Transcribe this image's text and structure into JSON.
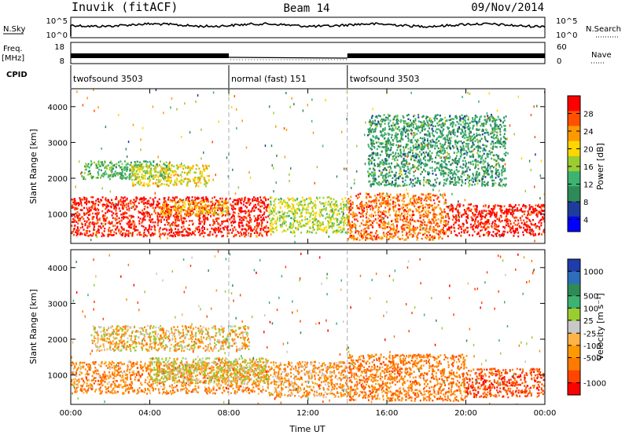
{
  "header": {
    "station": "Inuvik (fitACF)",
    "beam": "Beam 14",
    "date": "09/Nov/2014"
  },
  "side_labels": {
    "nsky": "N.Sky",
    "freq": "Freq.",
    "freq_unit": "[MHz]",
    "cpid": "CPID",
    "nsearch": "N.Search",
    "nave": "Nave"
  },
  "top_axes": {
    "nsky_ticks": [
      "10^5",
      "10^0"
    ],
    "nsearch_ticks": [
      "10^5",
      "10^0"
    ],
    "freq_ticks": [
      "18",
      "8"
    ],
    "nave_ticks": [
      "60",
      "0"
    ]
  },
  "cpid_segments": [
    {
      "label": "twofsound 3503",
      "start_hour": 0,
      "end_hour": 8
    },
    {
      "label": "normal (fast) 151",
      "start_hour": 8,
      "end_hour": 14
    },
    {
      "label": "twofsound 3503",
      "start_hour": 14,
      "end_hour": 24
    }
  ],
  "power_colorbar": {
    "label": "Power [dB]",
    "ticks": [
      "28",
      "24",
      "20",
      "16",
      "12",
      "8",
      "4"
    ],
    "colors": [
      "#ff0000",
      "#ff5000",
      "#ff9900",
      "#ffd700",
      "#9acd32",
      "#3cb371",
      "#2e8b57",
      "#1e3c9a",
      "#0000ff"
    ]
  },
  "velocity_colorbar": {
    "label": "Velocity [m s⁻¹]",
    "ticks": [
      "1000",
      "500",
      "100",
      "25",
      "-25",
      "-100",
      "-500",
      "-1000"
    ],
    "colors": [
      "#1e3caa",
      "#2e6eb8",
      "#2e8b57",
      "#3cb371",
      "#9acd32",
      "#c8c8c8",
      "#ffb347",
      "#ff9900",
      "#ff7a00",
      "#ff4500",
      "#ff0000"
    ]
  },
  "chart_data": [
    {
      "type": "heatmap",
      "name": "power-panel",
      "ylabel": "Slant Range [km]",
      "x_ticks": [
        "00:00",
        "04:00",
        "08:00",
        "12:00",
        "16:00",
        "20:00",
        "00:00"
      ],
      "y_ticks": [
        "1000",
        "2000",
        "3000",
        "4000"
      ],
      "xlim": [
        0,
        24
      ],
      "ylim": [
        180,
        4500
      ],
      "colorbar_range": [
        0,
        30
      ],
      "regions": [
        {
          "x": [
            0,
            10
          ],
          "y": [
            400,
            1500
          ],
          "value": 28
        },
        {
          "x": [
            4.5,
            8
          ],
          "y": [
            1000,
            1400
          ],
          "value": 20
        },
        {
          "x": [
            0.5,
            5
          ],
          "y": [
            2000,
            2500
          ],
          "value": 12
        },
        {
          "x": [
            3,
            7
          ],
          "y": [
            1800,
            2400
          ],
          "value": 18
        },
        {
          "x": [
            10,
            14
          ],
          "y": [
            500,
            1500
          ],
          "value": 16
        },
        {
          "x": [
            14,
            19
          ],
          "y": [
            300,
            1600
          ],
          "value": 24
        },
        {
          "x": [
            19,
            24
          ],
          "y": [
            400,
            1300
          ],
          "value": 28
        },
        {
          "x": [
            15,
            22
          ],
          "y": [
            1800,
            3800
          ],
          "value": 10
        }
      ]
    },
    {
      "type": "heatmap",
      "name": "velocity-panel",
      "ylabel": "Slant Range [km]",
      "xlabel": "Time UT",
      "x_ticks": [
        "00:00",
        "04:00",
        "08:00",
        "12:00",
        "16:00",
        "20:00",
        "00:00"
      ],
      "y_ticks": [
        "1000",
        "2000",
        "3000",
        "4000"
      ],
      "xlim": [
        0,
        24
      ],
      "ylim": [
        180,
        4500
      ],
      "colorbar_range": [
        -1000,
        1000
      ],
      "regions": [
        {
          "x": [
            0,
            10
          ],
          "y": [
            500,
            1400
          ],
          "value": -150
        },
        {
          "x": [
            4,
            10
          ],
          "y": [
            800,
            1500
          ],
          "value": 100
        },
        {
          "x": [
            1,
            9
          ],
          "y": [
            1700,
            2400
          ],
          "value": 0
        },
        {
          "x": [
            10,
            14
          ],
          "y": [
            400,
            1400
          ],
          "value": -100
        },
        {
          "x": [
            14,
            20
          ],
          "y": [
            300,
            1600
          ],
          "value": -200
        },
        {
          "x": [
            20,
            24
          ],
          "y": [
            400,
            1200
          ],
          "value": -400
        }
      ]
    }
  ]
}
